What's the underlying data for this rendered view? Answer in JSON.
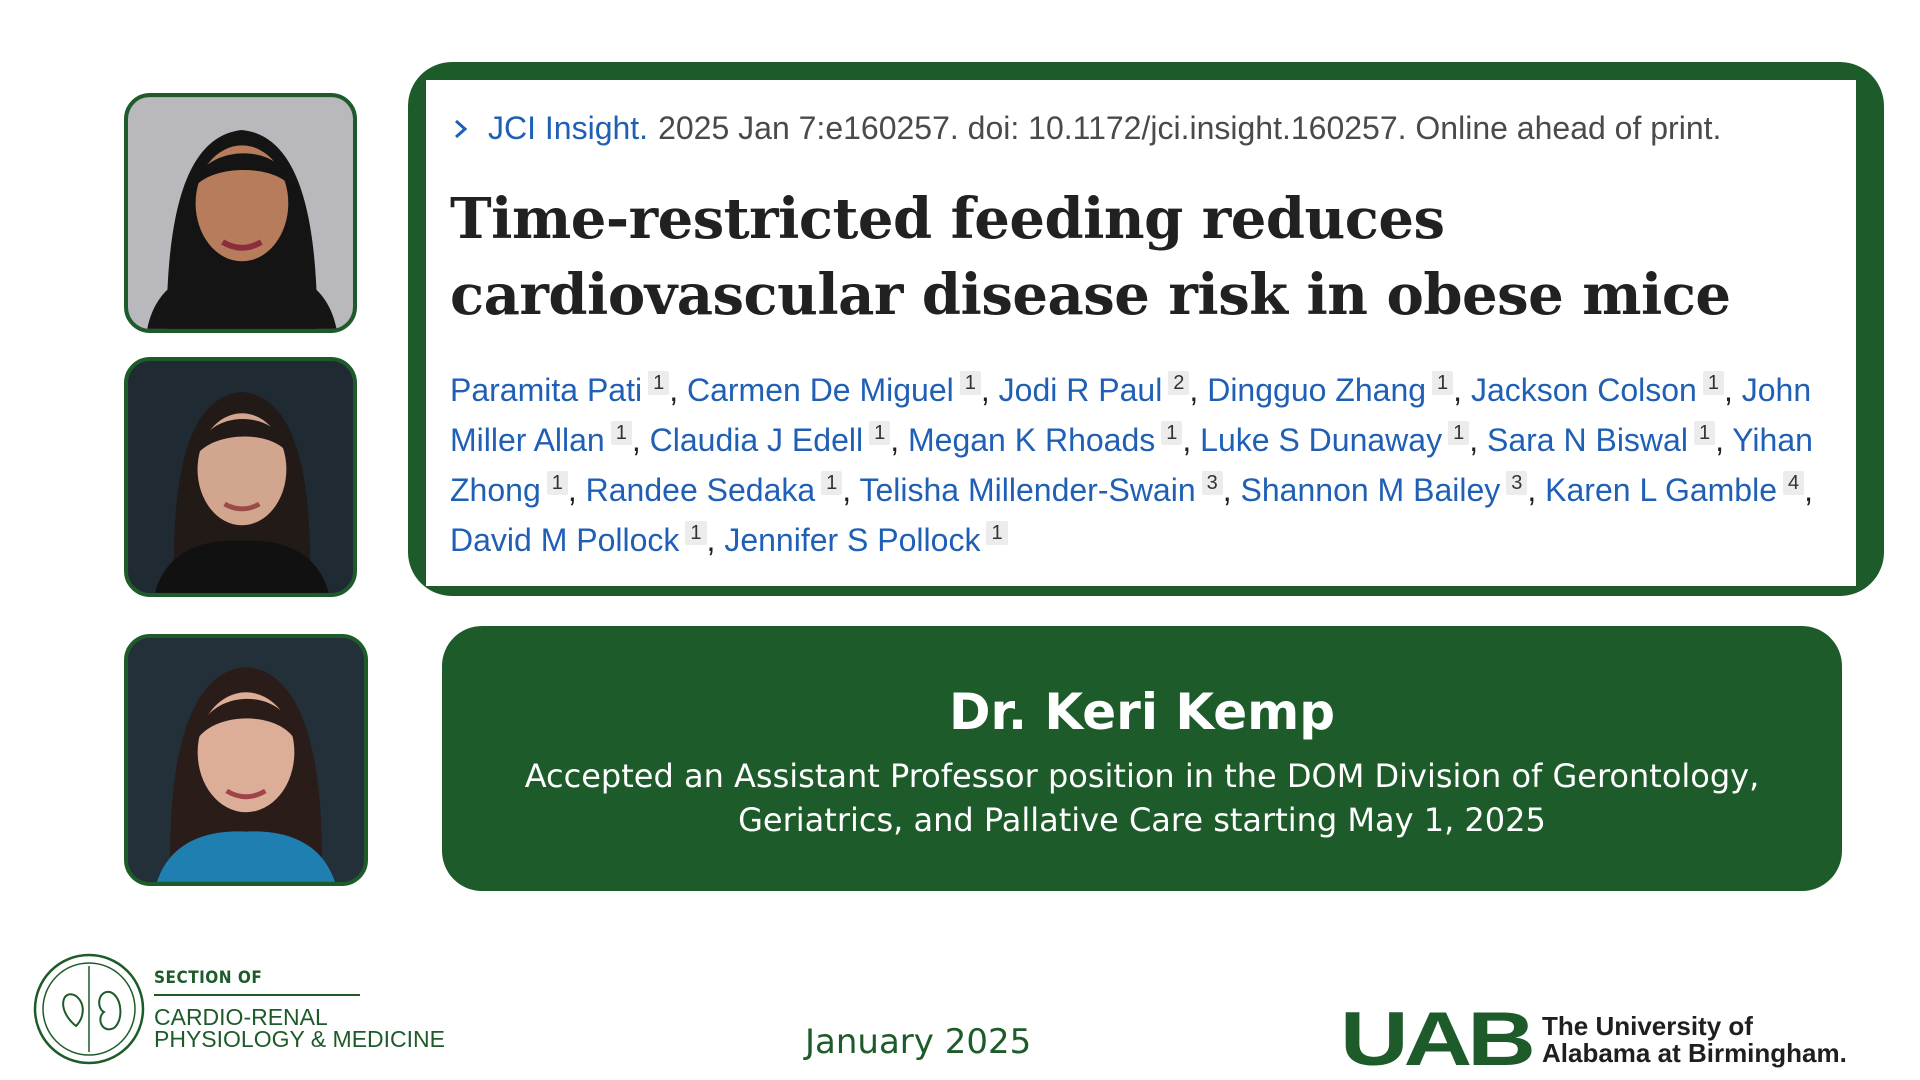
{
  "paper": {
    "journal": "JCI Insight.",
    "citation": "2025 Jan 7:e160257. doi: 10.1172/jci.insight.160257. Online ahead of print.",
    "title": "Time-restricted feeding reduces cardiovascular disease risk in obese mice",
    "authors": [
      {
        "name": "Paramita Pati",
        "aff": "1"
      },
      {
        "name": "Carmen De Miguel",
        "aff": "1"
      },
      {
        "name": "Jodi R Paul",
        "aff": "2"
      },
      {
        "name": "Dingguo Zhang",
        "aff": "1"
      },
      {
        "name": "Jackson Colson",
        "aff": "1"
      },
      {
        "name": "John Miller Allan",
        "aff": "1"
      },
      {
        "name": "Claudia J Edell",
        "aff": "1"
      },
      {
        "name": "Megan K Rhoads",
        "aff": "1"
      },
      {
        "name": "Luke S Dunaway",
        "aff": "1"
      },
      {
        "name": "Sara N Biswal",
        "aff": "1"
      },
      {
        "name": "Yihan Zhong",
        "aff": "1"
      },
      {
        "name": "Randee Sedaka",
        "aff": "1"
      },
      {
        "name": "Telisha Millender-Swain",
        "aff": "3"
      },
      {
        "name": "Shannon M Bailey",
        "aff": "3"
      },
      {
        "name": "Karen L Gamble",
        "aff": "4"
      },
      {
        "name": "David M Pollock",
        "aff": "1"
      },
      {
        "name": "Jennifer S Pollock",
        "aff": "1"
      }
    ]
  },
  "announcement": {
    "name": "Dr. Keri Kemp",
    "description": "Accepted an Assistant Professor position in the DOM Division of Gerontology, Geriatrics, and Pallative Care starting May 1, 2025"
  },
  "footer": {
    "section_of": "SECTION OF",
    "section_line1": "CARDIO-RENAL",
    "section_line2": "PHYSIOLOGY & MEDICINE",
    "date": "January 2025",
    "uab_mark": "UAB",
    "uab_line1": "The University of",
    "uab_line2": "Alabama at Birmingham."
  },
  "colors": {
    "brand_green": "#1e5b2a",
    "link_blue": "#1f5fb5"
  },
  "icons": [
    "chevron-right-icon",
    "heart-kidney-emblem-icon"
  ]
}
